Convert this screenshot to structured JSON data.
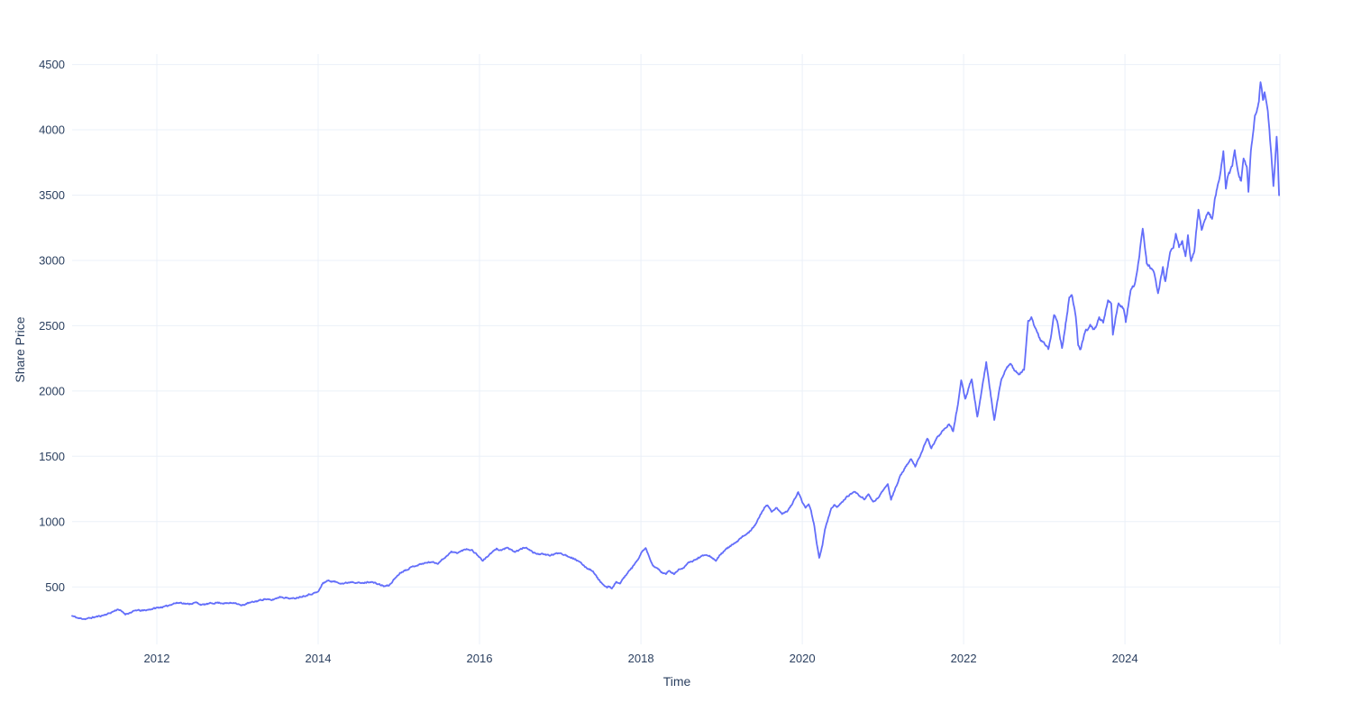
{
  "page": {
    "background": "#ffffff"
  },
  "chart_data": {
    "type": "line",
    "title": "",
    "xlabel": "Time",
    "ylabel": "Share Price",
    "legend": "none",
    "grid": true,
    "x_ticks": [
      2012,
      2014,
      2016,
      2018,
      2020,
      2022,
      2024
    ],
    "y_ticks": [
      500,
      1000,
      1500,
      2000,
      2500,
      3000,
      3500,
      4000,
      4500
    ],
    "x_range": [
      2010.95,
      2025.92
    ],
    "y_range": [
      60,
      4580
    ],
    "colors": {
      "line": "#636EFA",
      "grid": "#EBF0F8",
      "text": "#2a3f5f",
      "background": "#ffffff"
    },
    "series": [
      {
        "name": "Share Price",
        "points": [
          [
            2010.95,
            278
          ],
          [
            2011.03,
            260
          ],
          [
            2011.12,
            255
          ],
          [
            2011.22,
            268
          ],
          [
            2011.32,
            280
          ],
          [
            2011.42,
            300
          ],
          [
            2011.52,
            330
          ],
          [
            2011.61,
            292
          ],
          [
            2011.68,
            305
          ],
          [
            2011.75,
            322
          ],
          [
            2011.82,
            318
          ],
          [
            2011.9,
            326
          ],
          [
            2012.0,
            340
          ],
          [
            2012.11,
            350
          ],
          [
            2012.21,
            374
          ],
          [
            2012.3,
            380
          ],
          [
            2012.38,
            368
          ],
          [
            2012.49,
            380
          ],
          [
            2012.56,
            362
          ],
          [
            2012.67,
            374
          ],
          [
            2012.75,
            380
          ],
          [
            2012.86,
            374
          ],
          [
            2012.97,
            380
          ],
          [
            2013.05,
            356
          ],
          [
            2013.12,
            374
          ],
          [
            2013.23,
            390
          ],
          [
            2013.34,
            408
          ],
          [
            2013.42,
            398
          ],
          [
            2013.53,
            425
          ],
          [
            2013.61,
            416
          ],
          [
            2013.68,
            410
          ],
          [
            2013.79,
            426
          ],
          [
            2013.9,
            444
          ],
          [
            2014.0,
            462
          ],
          [
            2014.06,
            530
          ],
          [
            2014.12,
            548
          ],
          [
            2014.2,
            540
          ],
          [
            2014.31,
            526
          ],
          [
            2014.42,
            540
          ],
          [
            2014.54,
            528
          ],
          [
            2014.65,
            540
          ],
          [
            2014.76,
            518
          ],
          [
            2014.82,
            505
          ],
          [
            2014.88,
            512
          ],
          [
            2014.95,
            565
          ],
          [
            2015.02,
            610
          ],
          [
            2015.1,
            634
          ],
          [
            2015.18,
            658
          ],
          [
            2015.29,
            678
          ],
          [
            2015.4,
            692
          ],
          [
            2015.48,
            680
          ],
          [
            2015.56,
            720
          ],
          [
            2015.65,
            768
          ],
          [
            2015.72,
            760
          ],
          [
            2015.84,
            792
          ],
          [
            2015.91,
            780
          ],
          [
            2015.99,
            735
          ],
          [
            2016.04,
            700
          ],
          [
            2016.1,
            735
          ],
          [
            2016.21,
            792
          ],
          [
            2016.27,
            780
          ],
          [
            2016.33,
            800
          ],
          [
            2016.44,
            768
          ],
          [
            2016.55,
            800
          ],
          [
            2016.61,
            792
          ],
          [
            2016.67,
            760
          ],
          [
            2016.77,
            750
          ],
          [
            2016.88,
            742
          ],
          [
            2016.99,
            762
          ],
          [
            2017.1,
            735
          ],
          [
            2017.18,
            715
          ],
          [
            2017.26,
            680
          ],
          [
            2017.33,
            645
          ],
          [
            2017.4,
            624
          ],
          [
            2017.47,
            562
          ],
          [
            2017.53,
            518
          ],
          [
            2017.58,
            492
          ],
          [
            2017.61,
            506
          ],
          [
            2017.64,
            486
          ],
          [
            2017.7,
            540
          ],
          [
            2017.74,
            527
          ],
          [
            2017.81,
            588
          ],
          [
            2017.89,
            645
          ],
          [
            2017.97,
            715
          ],
          [
            2018.02,
            780
          ],
          [
            2018.06,
            794
          ],
          [
            2018.11,
            714
          ],
          [
            2018.15,
            660
          ],
          [
            2018.2,
            645
          ],
          [
            2018.26,
            611
          ],
          [
            2018.31,
            598
          ],
          [
            2018.35,
            624
          ],
          [
            2018.41,
            598
          ],
          [
            2018.47,
            632
          ],
          [
            2018.52,
            645
          ],
          [
            2018.58,
            680
          ],
          [
            2018.63,
            694
          ],
          [
            2018.69,
            714
          ],
          [
            2018.75,
            735
          ],
          [
            2018.81,
            750
          ],
          [
            2018.86,
            735
          ],
          [
            2018.93,
            700
          ],
          [
            2018.99,
            750
          ],
          [
            2019.04,
            782
          ],
          [
            2019.12,
            816
          ],
          [
            2019.2,
            850
          ],
          [
            2019.26,
            885
          ],
          [
            2019.34,
            920
          ],
          [
            2019.42,
            980
          ],
          [
            2019.49,
            1060
          ],
          [
            2019.53,
            1105
          ],
          [
            2019.57,
            1128
          ],
          [
            2019.62,
            1078
          ],
          [
            2019.68,
            1106
          ],
          [
            2019.75,
            1058
          ],
          [
            2019.81,
            1078
          ],
          [
            2019.88,
            1140
          ],
          [
            2019.95,
            1230
          ],
          [
            2020.0,
            1148
          ],
          [
            2020.04,
            1106
          ],
          [
            2020.08,
            1128
          ],
          [
            2020.11,
            1078
          ],
          [
            2020.15,
            968
          ],
          [
            2020.18,
            830
          ],
          [
            2020.21,
            725
          ],
          [
            2020.25,
            816
          ],
          [
            2020.28,
            940
          ],
          [
            2020.32,
            1020
          ],
          [
            2020.36,
            1105
          ],
          [
            2020.4,
            1128
          ],
          [
            2020.43,
            1106
          ],
          [
            2020.49,
            1148
          ],
          [
            2020.54,
            1182
          ],
          [
            2020.6,
            1210
          ],
          [
            2020.66,
            1230
          ],
          [
            2020.71,
            1196
          ],
          [
            2020.77,
            1175
          ],
          [
            2020.82,
            1210
          ],
          [
            2020.88,
            1148
          ],
          [
            2020.94,
            1182
          ],
          [
            2021.0,
            1240
          ],
          [
            2021.06,
            1286
          ],
          [
            2021.1,
            1170
          ],
          [
            2021.16,
            1265
          ],
          [
            2021.22,
            1355
          ],
          [
            2021.28,
            1420
          ],
          [
            2021.35,
            1480
          ],
          [
            2021.4,
            1420
          ],
          [
            2021.47,
            1520
          ],
          [
            2021.55,
            1640
          ],
          [
            2021.6,
            1560
          ],
          [
            2021.68,
            1650
          ],
          [
            2021.75,
            1700
          ],
          [
            2021.82,
            1750
          ],
          [
            2021.87,
            1690
          ],
          [
            2021.93,
            1900
          ],
          [
            2021.97,
            2080
          ],
          [
            2022.02,
            1935
          ],
          [
            2022.1,
            2095
          ],
          [
            2022.17,
            1805
          ],
          [
            2022.22,
            1980
          ],
          [
            2022.28,
            2220
          ],
          [
            2022.33,
            2000
          ],
          [
            2022.38,
            1772
          ],
          [
            2022.44,
            2000
          ],
          [
            2022.47,
            2095
          ],
          [
            2022.53,
            2170
          ],
          [
            2022.58,
            2215
          ],
          [
            2022.64,
            2150
          ],
          [
            2022.69,
            2130
          ],
          [
            2022.75,
            2165
          ],
          [
            2022.8,
            2530
          ],
          [
            2022.84,
            2565
          ],
          [
            2022.89,
            2475
          ],
          [
            2022.95,
            2395
          ],
          [
            2023.01,
            2360
          ],
          [
            2023.05,
            2325
          ],
          [
            2023.08,
            2408
          ],
          [
            2023.12,
            2580
          ],
          [
            2023.16,
            2545
          ],
          [
            2023.22,
            2325
          ],
          [
            2023.25,
            2443
          ],
          [
            2023.31,
            2719
          ],
          [
            2023.34,
            2740
          ],
          [
            2023.39,
            2580
          ],
          [
            2023.42,
            2353
          ],
          [
            2023.45,
            2318
          ],
          [
            2023.51,
            2457
          ],
          [
            2023.57,
            2498
          ],
          [
            2023.62,
            2464
          ],
          [
            2023.68,
            2560
          ],
          [
            2023.73,
            2526
          ],
          [
            2023.79,
            2705
          ],
          [
            2023.83,
            2670
          ],
          [
            2023.85,
            2430
          ],
          [
            2023.89,
            2580
          ],
          [
            2023.92,
            2664
          ],
          [
            2023.98,
            2636
          ],
          [
            2024.01,
            2532
          ],
          [
            2024.07,
            2767
          ],
          [
            2024.12,
            2820
          ],
          [
            2024.17,
            3000
          ],
          [
            2024.22,
            3244
          ],
          [
            2024.27,
            2975
          ],
          [
            2024.33,
            2940
          ],
          [
            2024.36,
            2905
          ],
          [
            2024.41,
            2747
          ],
          [
            2024.47,
            2940
          ],
          [
            2024.5,
            2837
          ],
          [
            2024.56,
            3070
          ],
          [
            2024.6,
            3105
          ],
          [
            2024.63,
            3209
          ],
          [
            2024.67,
            3105
          ],
          [
            2024.71,
            3147
          ],
          [
            2024.75,
            3037
          ],
          [
            2024.78,
            3182
          ],
          [
            2024.82,
            2989
          ],
          [
            2024.86,
            3078
          ],
          [
            2024.91,
            3382
          ],
          [
            2024.95,
            3244
          ],
          [
            2025.0,
            3313
          ],
          [
            2025.03,
            3382
          ],
          [
            2025.08,
            3313
          ],
          [
            2025.12,
            3493
          ],
          [
            2025.17,
            3631
          ],
          [
            2025.22,
            3838
          ],
          [
            2025.25,
            3541
          ],
          [
            2025.28,
            3658
          ],
          [
            2025.33,
            3713
          ],
          [
            2025.36,
            3851
          ],
          [
            2025.4,
            3679
          ],
          [
            2025.44,
            3610
          ],
          [
            2025.47,
            3769
          ],
          [
            2025.51,
            3727
          ],
          [
            2025.53,
            3520
          ],
          [
            2025.56,
            3838
          ],
          [
            2025.61,
            4093
          ],
          [
            2025.64,
            4162
          ],
          [
            2025.66,
            4210
          ],
          [
            2025.68,
            4355
          ],
          [
            2025.71,
            4231
          ],
          [
            2025.73,
            4286
          ],
          [
            2025.75,
            4217
          ],
          [
            2025.77,
            4141
          ],
          [
            2025.79,
            4003
          ],
          [
            2025.82,
            3748
          ],
          [
            2025.84,
            3562
          ],
          [
            2025.86,
            3748
          ],
          [
            2025.88,
            3934
          ],
          [
            2025.89,
            3838
          ],
          [
            2025.91,
            3506
          ]
        ]
      }
    ],
    "render_noise": {
      "seed": 11,
      "frac": 0.006,
      "min_units": 8,
      "steps_per_year": 130
    }
  }
}
